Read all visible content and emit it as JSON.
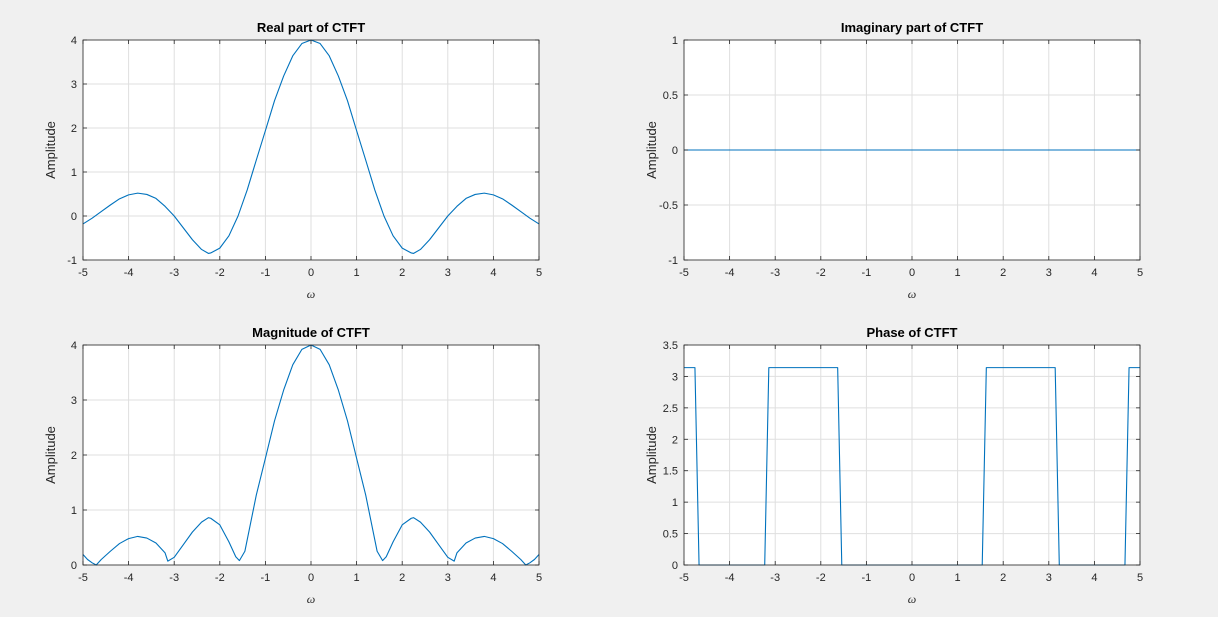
{
  "style": {
    "background": "#f0f0f0",
    "axes_background": "#ffffff",
    "line_color": "#0072bd",
    "grid_color": "#dfdfdf",
    "axis_color": "#262626"
  },
  "chart_data": [
    {
      "type": "line",
      "title": "Real part of CTFT",
      "xlabel": "ω",
      "ylabel": "Amplitude",
      "xlim": [
        -5,
        5
      ],
      "ylim": [
        -1,
        4
      ],
      "grid": true,
      "xticks": [
        "-5",
        "-4",
        "-3",
        "-2",
        "-1",
        "0",
        "1",
        "2",
        "3",
        "4",
        "5"
      ],
      "yticks": [
        "-1",
        "0",
        "1",
        "2",
        "3",
        "4"
      ],
      "series": [
        {
          "x": [
            -5,
            -4.8,
            -4.6,
            -4.4,
            -4.2,
            -4.0,
            -3.8,
            -3.6,
            -3.4,
            -3.2,
            -3.0,
            -2.8,
            -2.6,
            -2.4,
            -2.25,
            -2.2,
            -2.0,
            -1.8,
            -1.6,
            -1.4,
            -1.2,
            -1.0,
            -0.8,
            -0.6,
            -0.4,
            -0.2,
            0,
            0.2,
            0.4,
            0.6,
            0.8,
            1.0,
            1.2,
            1.4,
            1.6,
            1.8,
            2.0,
            2.2,
            2.25,
            2.4,
            2.6,
            2.8,
            3.0,
            3.2,
            3.4,
            3.6,
            3.8,
            4.0,
            4.2,
            4.4,
            4.6,
            4.8,
            5
          ],
          "values": [
            -0.18,
            -0.05,
            0.1,
            0.25,
            0.39,
            0.48,
            0.52,
            0.49,
            0.4,
            0.22,
            0.0,
            -0.27,
            -0.54,
            -0.76,
            -0.85,
            -0.84,
            -0.73,
            -0.45,
            0.0,
            0.59,
            1.27,
            1.94,
            2.62,
            3.18,
            3.64,
            3.92,
            4.0,
            3.92,
            3.64,
            3.18,
            2.62,
            1.94,
            1.27,
            0.59,
            0.0,
            -0.45,
            -0.73,
            -0.84,
            -0.85,
            -0.76,
            -0.54,
            -0.27,
            0.0,
            0.22,
            0.4,
            0.49,
            0.52,
            0.48,
            0.39,
            0.25,
            0.1,
            -0.05,
            -0.18
          ]
        }
      ]
    },
    {
      "type": "line",
      "title": "Imaginary part of CTFT",
      "xlabel": "ω",
      "ylabel": "Amplitude",
      "xlim": [
        -5,
        5
      ],
      "ylim": [
        -1,
        1
      ],
      "grid": true,
      "xticks": [
        "-5",
        "-4",
        "-3",
        "-2",
        "-1",
        "0",
        "1",
        "2",
        "3",
        "4",
        "5"
      ],
      "yticks": [
        "-1",
        "-0.5",
        "0",
        "0.5",
        "1"
      ],
      "series": [
        {
          "x": [
            -5,
            5
          ],
          "values": [
            0,
            0
          ]
        }
      ]
    },
    {
      "type": "line",
      "title": "Magnitude of CTFT",
      "xlabel": "ω",
      "ylabel": "Amplitude",
      "xlim": [
        -5,
        5
      ],
      "ylim": [
        0,
        4
      ],
      "grid": true,
      "xticks": [
        "-5",
        "-4",
        "-3",
        "-2",
        "-1",
        "0",
        "1",
        "2",
        "3",
        "4",
        "5"
      ],
      "yticks": [
        "0",
        "1",
        "2",
        "3",
        "4"
      ],
      "series": [
        {
          "x": [
            -5,
            -4.9,
            -4.8,
            -4.71,
            -4.6,
            -4.4,
            -4.2,
            -4.0,
            -3.8,
            -3.6,
            -3.4,
            -3.2,
            -3.14,
            -3.0,
            -2.8,
            -2.6,
            -2.4,
            -2.25,
            -2.2,
            -2.0,
            -1.8,
            -1.65,
            -1.57,
            -1.45,
            -1.2,
            -1.0,
            -0.8,
            -0.6,
            -0.4,
            -0.2,
            0,
            0.2,
            0.4,
            0.6,
            0.8,
            1.0,
            1.2,
            1.45,
            1.57,
            1.65,
            1.8,
            2.0,
            2.2,
            2.25,
            2.4,
            2.6,
            2.8,
            3.0,
            3.14,
            3.2,
            3.4,
            3.6,
            3.8,
            4.0,
            4.2,
            4.4,
            4.6,
            4.71,
            4.8,
            4.9,
            5
          ],
          "values": [
            0.19,
            0.1,
            0.04,
            0.0,
            0.1,
            0.25,
            0.39,
            0.48,
            0.52,
            0.49,
            0.4,
            0.22,
            0.07,
            0.14,
            0.37,
            0.6,
            0.78,
            0.86,
            0.85,
            0.73,
            0.42,
            0.15,
            0.08,
            0.25,
            1.27,
            1.94,
            2.62,
            3.18,
            3.64,
            3.92,
            4.0,
            3.92,
            3.64,
            3.18,
            2.62,
            1.94,
            1.27,
            0.25,
            0.08,
            0.15,
            0.42,
            0.73,
            0.85,
            0.86,
            0.78,
            0.6,
            0.37,
            0.14,
            0.07,
            0.22,
            0.4,
            0.49,
            0.52,
            0.48,
            0.39,
            0.25,
            0.1,
            0.0,
            0.04,
            0.1,
            0.19
          ]
        }
      ]
    },
    {
      "type": "line",
      "title": "Phase of CTFT",
      "xlabel": "ω",
      "ylabel": "Amplitude",
      "xlim": [
        -5,
        5
      ],
      "ylim": [
        0,
        3.5
      ],
      "grid": true,
      "xticks": [
        "-5",
        "-4",
        "-3",
        "-2",
        "-1",
        "0",
        "1",
        "2",
        "3",
        "4",
        "5"
      ],
      "yticks": [
        "0",
        "0.5",
        "1",
        "1.5",
        "2",
        "2.5",
        "3",
        "3.5"
      ],
      "series": [
        {
          "x": [
            -5,
            -4.76,
            -4.67,
            -3.23,
            -3.14,
            -1.63,
            -1.54,
            1.54,
            1.63,
            3.14,
            3.23,
            4.67,
            4.76,
            5
          ],
          "values": [
            3.14,
            3.14,
            0,
            0,
            3.14,
            3.14,
            0,
            0,
            3.14,
            3.14,
            0,
            0,
            3.14,
            3.14
          ]
        }
      ]
    }
  ]
}
